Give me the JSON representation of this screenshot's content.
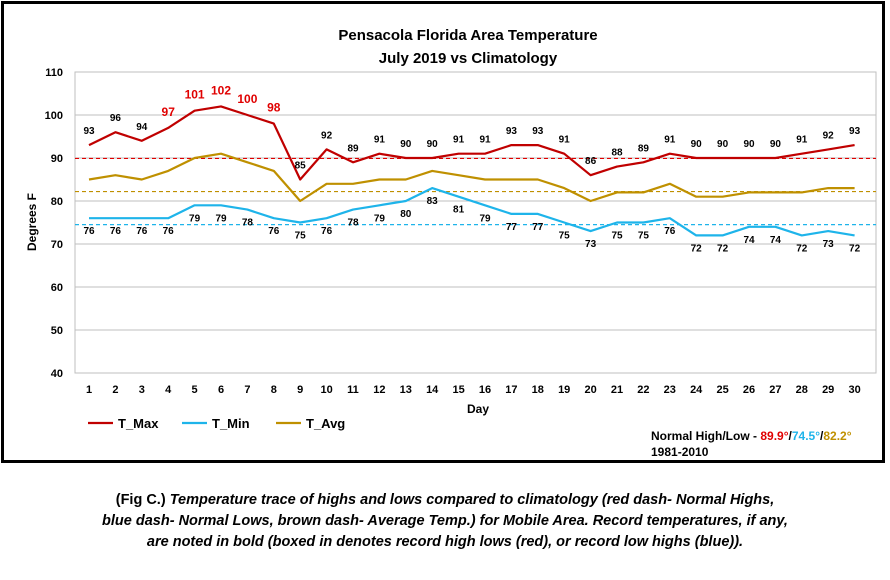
{
  "chart_data": {
    "type": "line",
    "title": "Pensacola Florida Area Temperature",
    "subtitle": "July 2019 vs Climatology",
    "xlabel": "Day",
    "ylabel": "Degrees F",
    "ylim": [
      40,
      110
    ],
    "yticks": [
      40,
      50,
      60,
      70,
      80,
      90,
      100,
      110
    ],
    "x": [
      1,
      2,
      3,
      4,
      5,
      6,
      7,
      8,
      9,
      10,
      11,
      12,
      13,
      14,
      15,
      16,
      17,
      18,
      19,
      20,
      21,
      22,
      23,
      24,
      25,
      26,
      27,
      28,
      29,
      30
    ],
    "series": [
      {
        "name": "T_Max",
        "color": "#c00000",
        "values": [
          93,
          96,
          94,
          97,
          101,
          102,
          100,
          98,
          85,
          92,
          89,
          91,
          90,
          90,
          91,
          91,
          93,
          93,
          91,
          86,
          88,
          89,
          91,
          90,
          90,
          90,
          90,
          91,
          92,
          93
        ],
        "labels": [
          "93",
          "96",
          "94",
          "97",
          "101",
          "102",
          "100",
          "98",
          "85",
          "92",
          "89",
          "91",
          "90",
          "90",
          "91",
          "91",
          "93",
          "93",
          "91",
          "86",
          "88",
          "89",
          "91",
          "90",
          "90",
          "90",
          "90",
          "91",
          "92",
          "93"
        ],
        "record_days": [
          4,
          5,
          6,
          7,
          8
        ]
      },
      {
        "name": "T_Min",
        "color": "#1eb4ea",
        "values": [
          76,
          76,
          76,
          76,
          79,
          79,
          78,
          76,
          75,
          76,
          78,
          79,
          80,
          83,
          81,
          79,
          77,
          77,
          75,
          73,
          75,
          75,
          76,
          72,
          72,
          74,
          74,
          72,
          73,
          72
        ],
        "labels": [
          "76",
          "76",
          "76",
          "76",
          "79",
          "79",
          "78",
          "76",
          "75",
          "76",
          "78",
          "79",
          "80",
          "83",
          "81",
          "79",
          "77",
          "77",
          "75",
          "73",
          "75",
          "75",
          "76",
          "72",
          "72",
          "74",
          "74",
          "72",
          "73",
          "72"
        ]
      },
      {
        "name": "T_Avg",
        "color": "#bf9000",
        "values": [
          85,
          86,
          85,
          87,
          90,
          91,
          89,
          87,
          80,
          84,
          84,
          85,
          85,
          87,
          86,
          85,
          85,
          85,
          83,
          80,
          82,
          82,
          84,
          81,
          81,
          82,
          82,
          82,
          83,
          83
        ]
      }
    ],
    "reference_lines": [
      {
        "value": 89.9,
        "color": "#e00000"
      },
      {
        "value": 74.5,
        "color": "#1eb4ea"
      },
      {
        "value": 82.2,
        "color": "#bf9000"
      }
    ],
    "legend_position": "bottom-left",
    "normals": {
      "prefix": "Normal High/Low - ",
      "high": "89.9°",
      "sep1": "/",
      "low": "74.5°",
      "sep2": "/",
      "avg": "82.2°",
      "period": "1981-2010"
    }
  },
  "caption": {
    "lead": "(Fig C.) ",
    "body": "Temperature trace of highs and lows compared to climatology (red dash- Normal Highs, blue dash- Normal Lows, brown dash- Average Temp.) for Mobile Area. Record temperatures, if any, are noted in bold (boxed in denotes record high lows (red), or record low highs (blue))."
  }
}
